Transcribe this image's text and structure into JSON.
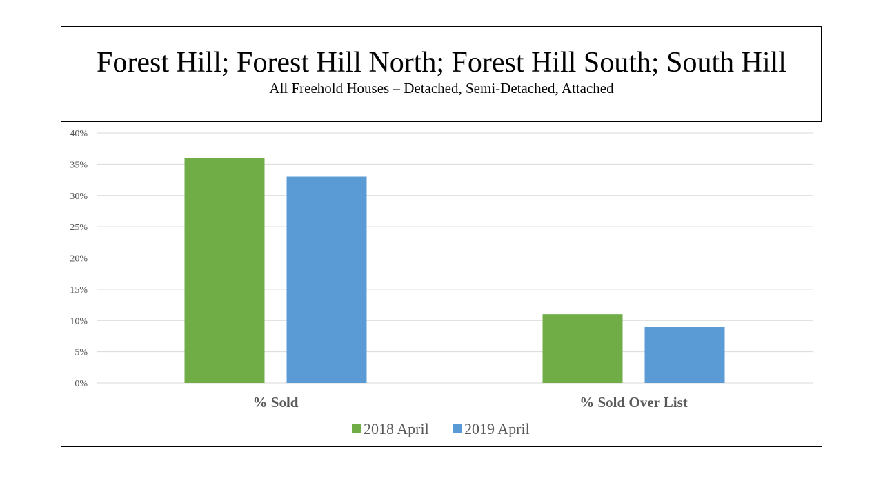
{
  "header": {
    "title": "Forest Hill; Forest Hill North; Forest Hill South; South Hill",
    "subtitle": "All Freehold Houses – Detached, Semi-Detached, Attached"
  },
  "chart_data": {
    "type": "bar",
    "title": "Forest Hill; Forest Hill North; Forest Hill South; South Hill",
    "subtitle": "All Freehold Houses – Detached, Semi-Detached, Attached",
    "categories": [
      "% Sold",
      "% Sold Over List"
    ],
    "series": [
      {
        "name": "2018 April",
        "values": [
          36,
          11
        ],
        "color": "#70AD47"
      },
      {
        "name": "2019 April",
        "values": [
          33,
          9
        ],
        "color": "#5B9BD5"
      }
    ],
    "y_ticks": [
      "0%",
      "5%",
      "10%",
      "15%",
      "20%",
      "25%",
      "30%",
      "35%",
      "40%"
    ],
    "ylim": [
      0,
      40
    ],
    "y_step": 5,
    "grid": true,
    "legend_position": "bottom"
  }
}
